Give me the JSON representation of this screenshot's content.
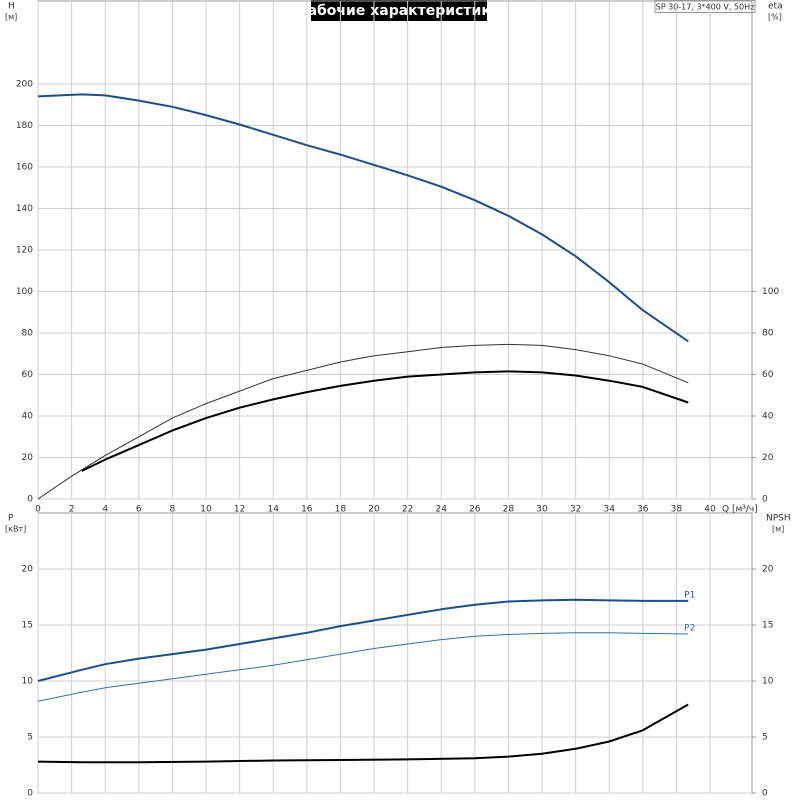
{
  "chart_data": [
    {
      "type": "line",
      "title": "Рабочие характеристики",
      "subtitle": "SP 30-17, 3*400 V, 50Hz",
      "y_label": "H",
      "y_unit": "[м]",
      "y2_label": "eta",
      "y2_unit": "[%]",
      "x_label": "Q [м³/ч]",
      "xlim": [
        0,
        42.5
      ],
      "xticks": [
        0,
        2,
        4,
        6,
        8,
        10,
        12,
        14,
        16,
        18,
        20,
        22,
        24,
        26,
        28,
        30,
        32,
        34,
        36,
        38,
        40
      ],
      "ylim": [
        0,
        240
      ],
      "yticks": [
        0,
        20,
        40,
        60,
        80,
        100,
        120,
        140,
        160,
        180,
        200
      ],
      "y2lim": [
        0,
        240
      ],
      "y2ticks": [
        0,
        20,
        40,
        60,
        80,
        100
      ],
      "grid": true,
      "series": [
        {
          "color": "#1f4e8c",
          "width": 2,
          "x": [
            0,
            2.6,
            4,
            6,
            8,
            10,
            12,
            14,
            16,
            18,
            20,
            22,
            24,
            26,
            28,
            30,
            32,
            34,
            36,
            38.7
          ],
          "values": [
            194,
            195,
            194.5,
            192,
            189,
            185,
            180.5,
            175.5,
            170.5,
            166,
            161,
            156,
            150.5,
            144,
            136.5,
            127.5,
            117,
            104.5,
            91,
            76
          ]
        },
        {
          "color": "#333333",
          "width": 1,
          "axis": "y2",
          "x": [
            0,
            2,
            4,
            6,
            8,
            10,
            12,
            14,
            16,
            18,
            20,
            22,
            24,
            26,
            28,
            30,
            32,
            34,
            36,
            38.7
          ],
          "values": [
            0,
            11,
            21,
            30,
            39,
            46,
            52,
            58,
            62,
            66,
            69,
            71,
            73,
            74,
            74.5,
            74,
            72,
            69,
            65,
            56
          ]
        },
        {
          "color": "#000000",
          "width": 2,
          "axis": "y2",
          "x": [
            2.6,
            4,
            6,
            8,
            10,
            12,
            14,
            16,
            18,
            20,
            22,
            24,
            26,
            28,
            30,
            32,
            34,
            36,
            38.7
          ],
          "values": [
            13.5,
            19,
            26,
            33,
            39,
            44,
            48,
            51.5,
            54.5,
            57,
            59,
            60,
            61,
            61.5,
            61,
            59.5,
            57,
            54,
            46.5
          ]
        }
      ]
    },
    {
      "type": "line",
      "y_label": "P",
      "y_unit": "[кВт]",
      "y2_label": "NPSH",
      "y2_unit": "[м]",
      "xlim": [
        0,
        42.5
      ],
      "ylim": [
        0,
        25
      ],
      "yticks": [
        0,
        5,
        10,
        15,
        20
      ],
      "y2lim": [
        0,
        25
      ],
      "y2ticks": [
        0,
        5,
        10,
        15,
        20
      ],
      "grid": true,
      "series": [
        {
          "name": "P1",
          "color": "#1f4e8c",
          "width": 2,
          "x": [
            0,
            2.6,
            4,
            6,
            8,
            10,
            12,
            14,
            16,
            18,
            20,
            22,
            24,
            26,
            28,
            30,
            32,
            34,
            36,
            38.7
          ],
          "values": [
            10,
            11,
            11.5,
            12,
            12.4,
            12.8,
            13.3,
            13.8,
            14.3,
            14.9,
            15.4,
            15.9,
            16.4,
            16.8,
            17.1,
            17.2,
            17.25,
            17.2,
            17.15,
            17.15
          ]
        },
        {
          "name": "P2",
          "color": "#3a6ea5",
          "width": 1,
          "x": [
            0,
            2.6,
            4,
            6,
            8,
            10,
            12,
            14,
            16,
            18,
            20,
            22,
            24,
            26,
            28,
            30,
            32,
            34,
            36,
            38.7
          ],
          "values": [
            8.2,
            9,
            9.4,
            9.8,
            10.2,
            10.6,
            11,
            11.4,
            11.9,
            12.4,
            12.9,
            13.3,
            13.7,
            14,
            14.15,
            14.25,
            14.3,
            14.3,
            14.25,
            14.2
          ]
        },
        {
          "color": "#000000",
          "width": 2,
          "axis": "y2",
          "x": [
            0,
            2.6,
            6,
            10,
            14,
            18,
            22,
            26,
            28,
            30,
            32,
            34,
            36,
            38.7
          ],
          "values": [
            2.8,
            2.75,
            2.75,
            2.8,
            2.9,
            2.95,
            3,
            3.1,
            3.25,
            3.5,
            3.95,
            4.6,
            5.6,
            7.9
          ]
        }
      ]
    }
  ]
}
